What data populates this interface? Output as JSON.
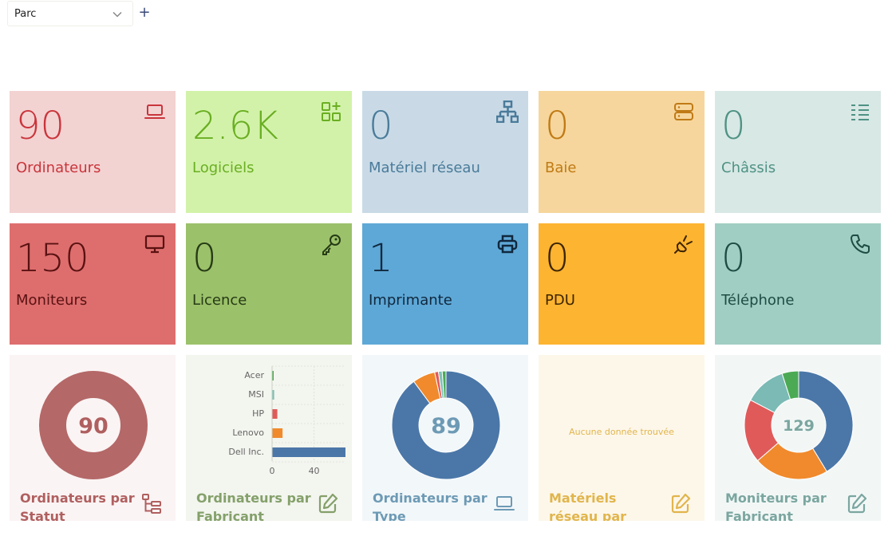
{
  "tab": {
    "label": "Parc",
    "add_label": "+"
  },
  "cards": [
    {
      "value": "90",
      "label": "Ordinateurs",
      "icon": "laptop-icon",
      "bg": "#f3d2d2",
      "fg": "#c9353b"
    },
    {
      "value": "2.6K",
      "label": "Logiciels",
      "icon": "apps-add-icon",
      "bg": "#d2f2a9",
      "fg": "#6aae22"
    },
    {
      "value": "0",
      "label": "Matériel réseau",
      "icon": "network-icon",
      "bg": "#c9dae6",
      "fg": "#4a7b9a"
    },
    {
      "value": "0",
      "label": "Baie",
      "icon": "server-icon",
      "bg": "#f6d69c",
      "fg": "#c07a15"
    },
    {
      "value": "0",
      "label": "Châssis",
      "icon": "chassis-icon",
      "bg": "#d8e8e5",
      "fg": "#4f9284"
    },
    {
      "value": "150",
      "label": "Moniteurs",
      "icon": "monitor-icon",
      "bg": "#de6e6e",
      "fg": "#5a1111"
    },
    {
      "value": "0",
      "label": "Licence",
      "icon": "key-icon",
      "bg": "#9bc16a",
      "fg": "#263a15"
    },
    {
      "value": "1",
      "label": "Imprimante",
      "icon": "printer-icon",
      "bg": "#5ea8d7",
      "fg": "#10283e"
    },
    {
      "value": "0",
      "label": "PDU",
      "icon": "plug-icon",
      "bg": "#fdb431",
      "fg": "#3d2500"
    },
    {
      "value": "0",
      "label": "Téléphone",
      "icon": "phone-icon",
      "bg": "#a0cec3",
      "fg": "#1e4c44"
    }
  ],
  "widgets": [
    {
      "title": "Ordinateurs par Statut",
      "icon": "tree-structure-icon",
      "bg": "#fbf4f4",
      "fg": "#b05f5f",
      "center": "90"
    },
    {
      "title": "Ordinateurs par Fabricant",
      "icon": "edit-icon",
      "bg": "#f3f5ef",
      "fg": "#84a06a"
    },
    {
      "title": "Ordinateurs par Type",
      "icon": "laptop-icon",
      "bg": "#f2f7f9",
      "fg": "#6d9ab5",
      "center": "89"
    },
    {
      "title": "Matériels réseau par Fabricant",
      "icon": "edit-icon",
      "bg": "#fdf7ea",
      "fg": "#e1b54c",
      "empty": "Aucune donnée trouvée"
    },
    {
      "title": "Moniteurs par Fabricant",
      "icon": "edit-icon",
      "bg": "#f2f7f6",
      "fg": "#7ba6a0",
      "center": "129"
    }
  ],
  "chart_data": [
    {
      "type": "pie",
      "title": "Ordinateurs par Statut",
      "series": [
        {
          "values": [
            90
          ]
        }
      ],
      "colors": [
        "#b46868"
      ]
    },
    {
      "type": "bar",
      "title": "Ordinateurs par Fabricant",
      "categories": [
        "Acer",
        "MSI",
        "HP",
        "Lenovo",
        "Dell Inc."
      ],
      "values": [
        1,
        2,
        5,
        10,
        70
      ],
      "colors": [
        "#4caa55",
        "#7bc2b8",
        "#e05a5a",
        "#f08a2c",
        "#4b77a8"
      ],
      "xticks": [
        "0",
        "40"
      ],
      "xlim": [
        0,
        70
      ]
    },
    {
      "type": "pie",
      "title": "Ordinateurs par Type",
      "values": [
        80,
        6,
        1,
        1,
        1
      ],
      "colors": [
        "#4b77a8",
        "#f08a2c",
        "#e05a5a",
        "#7bc2b8",
        "#4caa55"
      ]
    },
    {
      "type": "pie",
      "title": "Moniteurs par Fabricant",
      "values": [
        50,
        27,
        23,
        15,
        6
      ],
      "colors": [
        "#4b77a8",
        "#f08a2c",
        "#e05a5a",
        "#7bbab5",
        "#4caa55"
      ]
    }
  ]
}
